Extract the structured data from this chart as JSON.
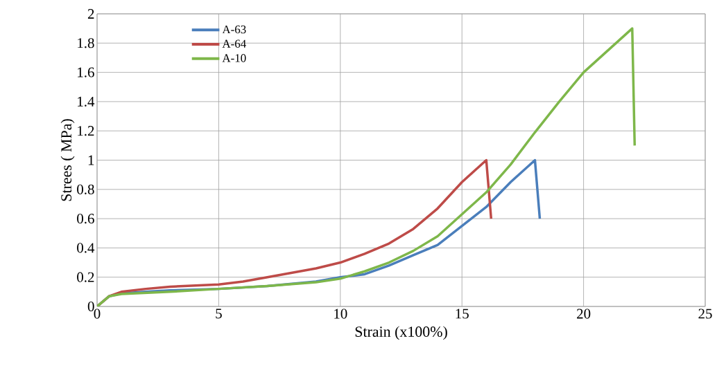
{
  "chart_data": {
    "type": "line",
    "xlabel": "Strain  (x100%)",
    "ylabel": "Strees ( MPa)",
    "series": [
      {
        "name": "A-63",
        "color": "#4a7ebb",
        "x": [
          0,
          0.5,
          1,
          2,
          3,
          5,
          7,
          9,
          10,
          11,
          12,
          13,
          14,
          15,
          16,
          17,
          18,
          18.2
        ],
        "values": [
          0,
          0.07,
          0.09,
          0.1,
          0.11,
          0.12,
          0.14,
          0.17,
          0.2,
          0.22,
          0.28,
          0.35,
          0.42,
          0.55,
          0.68,
          0.85,
          1.0,
          0.6
        ]
      },
      {
        "name": "A-64",
        "color": "#be4b48",
        "x": [
          0,
          0.5,
          1,
          2,
          3,
          5,
          6,
          7,
          9,
          10,
          11,
          12,
          13,
          14,
          15,
          16,
          16.2
        ],
        "values": [
          0,
          0.07,
          0.1,
          0.12,
          0.135,
          0.15,
          0.17,
          0.2,
          0.26,
          0.3,
          0.36,
          0.43,
          0.53,
          0.67,
          0.85,
          1.0,
          0.6
        ]
      },
      {
        "name": "A-10",
        "color": "#7eb74a",
        "x": [
          0,
          0.5,
          1,
          3,
          5,
          7,
          9,
          10,
          11,
          12,
          13,
          14,
          15,
          16,
          17,
          18,
          19,
          20,
          21,
          22,
          22.1
        ],
        "values": [
          0,
          0.07,
          0.085,
          0.1,
          0.12,
          0.14,
          0.165,
          0.19,
          0.24,
          0.3,
          0.38,
          0.48,
          0.63,
          0.78,
          0.97,
          1.19,
          1.4,
          1.6,
          1.75,
          1.9,
          1.1
        ]
      }
    ],
    "xlim": [
      0,
      25
    ],
    "xticks": [
      0,
      5,
      10,
      15,
      20,
      25
    ],
    "ylim": [
      0,
      2
    ],
    "yticks": [
      0,
      0.2,
      0.4,
      0.6,
      0.8,
      1,
      1.2,
      1.4,
      1.6,
      1.8,
      2
    ],
    "grid": true,
    "legend": "top left",
    "marker": "none",
    "line_style": "solid"
  }
}
